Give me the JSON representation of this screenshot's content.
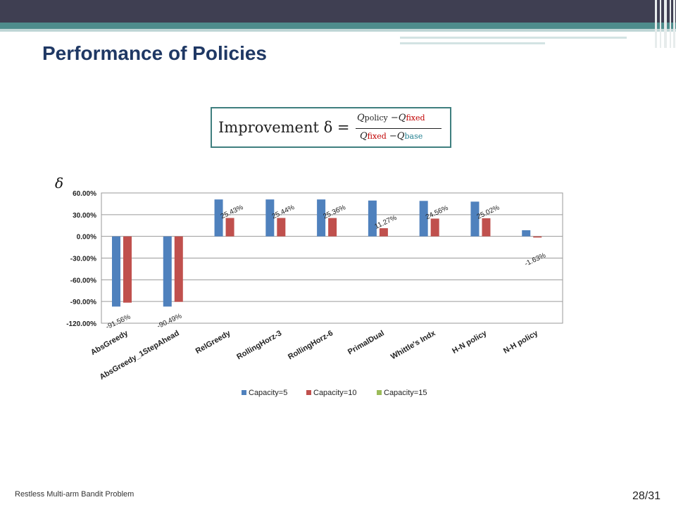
{
  "slide": {
    "title": "Performance of Policies",
    "footer_left": "Restless Multi-arm Bandit Problem",
    "page_number": "28/31"
  },
  "formula": {
    "lhs": "Improvement δ =",
    "numerator": {
      "q1": "Q",
      "sub1": "policy",
      "minus": " −",
      "q2": "Q",
      "sub2": "fixed"
    },
    "denominator": {
      "q1": "Q",
      "sub1": "fixed",
      "minus": " −",
      "q2": "Q",
      "sub2": "base"
    }
  },
  "chart_y_symbol": "δ",
  "chart_data": {
    "type": "bar",
    "categories": [
      "AbsGreedy",
      "AbsGreedy_1StepAhead",
      "RelGreedy",
      "RollingHorz-3",
      "RollingHorz-6",
      "PrimalDual",
      "Whittle's Indx",
      "H-N policy",
      "N-H policy"
    ],
    "series": [
      {
        "name": "Capacity=5",
        "color": "#4f81bd",
        "values": [
          -97.0,
          -97.0,
          51.0,
          51.0,
          51.0,
          49.5,
          49.0,
          48.0,
          8.5
        ]
      },
      {
        "name": "Capacity=10",
        "color": "#c0504d",
        "values": [
          -91.56,
          -90.49,
          25.43,
          25.44,
          25.36,
          11.27,
          24.56,
          25.02,
          -1.63
        ]
      },
      {
        "name": "Capacity=15",
        "color": "#9bbb59",
        "values": [
          0,
          0,
          0,
          0,
          0,
          0,
          0,
          0,
          0
        ]
      }
    ],
    "data_labels": [
      "-91.56%",
      "-90.49%",
      "25.43%",
      "25.44%",
      "25.36%",
      "11.27%",
      "24.56%",
      "25.02%",
      "-1.63%"
    ],
    "yticks": [
      "60.00%",
      "30.00%",
      "0.00%",
      "-30.00%",
      "-60.00%",
      "-90.00%",
      "-120.00%"
    ],
    "ytick_values": [
      60,
      30,
      0,
      -30,
      -60,
      -90,
      -120
    ],
    "ylim": [
      -120,
      60
    ],
    "grid": true,
    "legend_position": "bottom"
  }
}
